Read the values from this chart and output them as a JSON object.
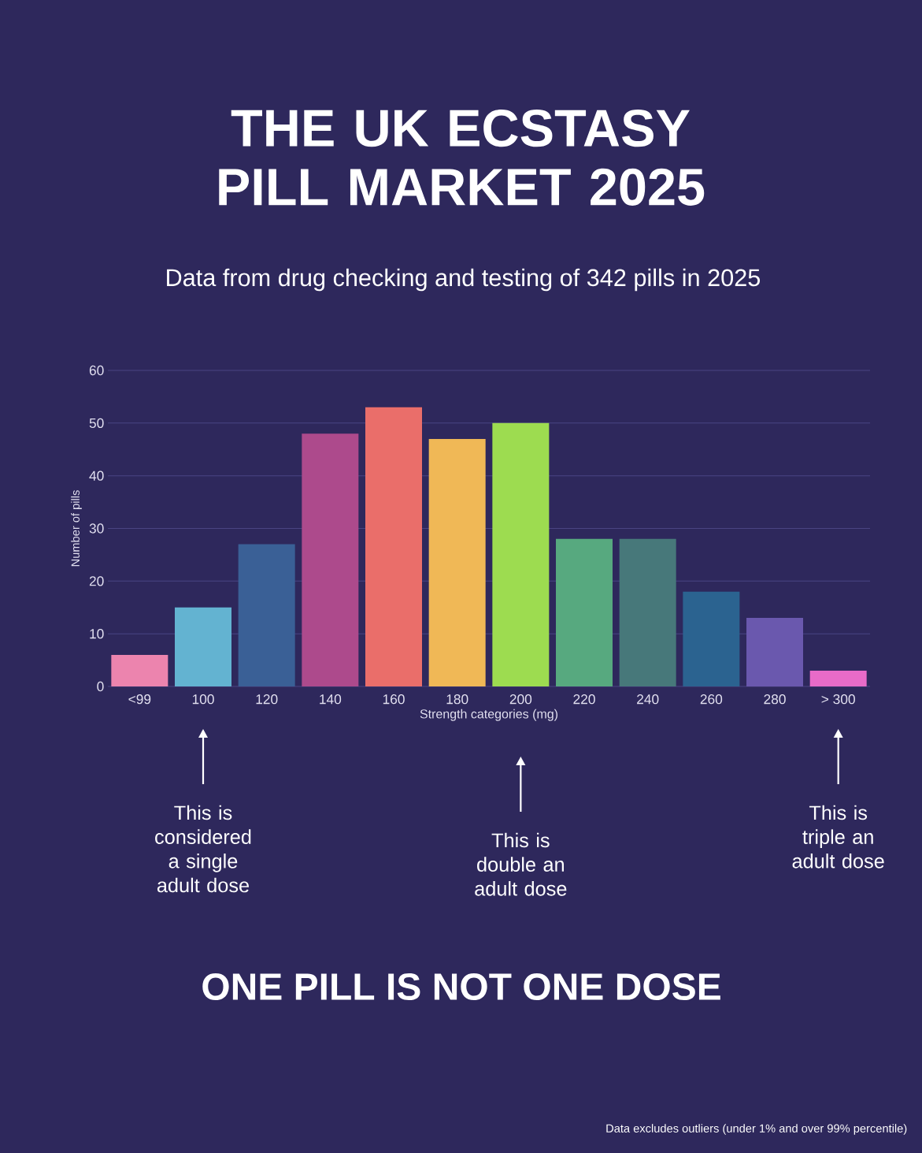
{
  "chart_data": {
    "type": "bar",
    "title": "THE UK ECSTASY PILL MARKET 2025",
    "subtitle": "Data from drug checking and testing of 342 pills in 2025",
    "xlabel": "Strength categories (mg)",
    "ylabel": "Number of pills",
    "categories": [
      "<99",
      "100",
      "120",
      "140",
      "160",
      "180",
      "200",
      "220",
      "240",
      "260",
      "280",
      "> 300"
    ],
    "values": [
      6,
      15,
      27,
      48,
      53,
      47,
      50,
      28,
      28,
      18,
      13,
      3
    ],
    "colors": [
      "#ec84ae",
      "#63b3d1",
      "#3a6096",
      "#ad4a8c",
      "#ea6e6a",
      "#f0b856",
      "#9ddc50",
      "#57a97f",
      "#47787a",
      "#2b6390",
      "#6a58ae",
      "#e86bc8"
    ],
    "ylim": [
      0,
      60
    ],
    "yticks": [
      0,
      10,
      20,
      30,
      40,
      50,
      60
    ],
    "grid": "y",
    "annotations": [
      "This is considered a single adult dose",
      "This is double an adult dose",
      "This is triple an adult dose",
      "ONE PILL IS NOT ONE DOSE",
      "Data excludes outliers (under 1% and over 99% percentile)"
    ]
  }
}
